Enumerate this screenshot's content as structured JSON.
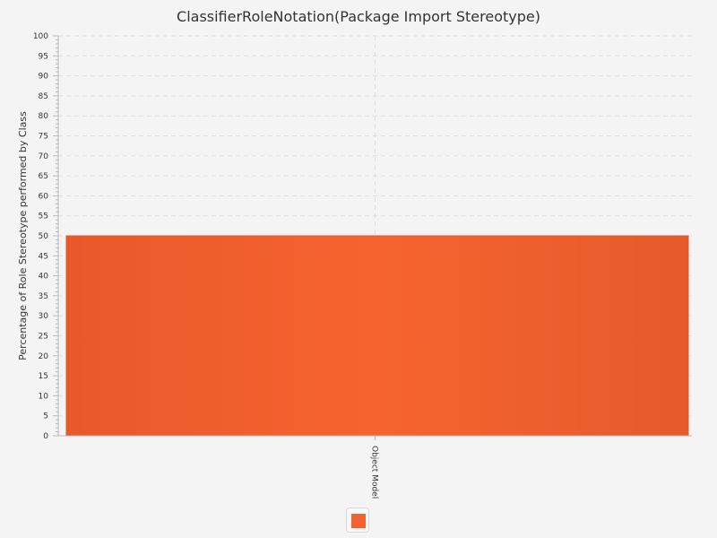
{
  "chart_data": {
    "type": "bar",
    "title": "ClassifierRoleNotation(Package Import Stereotype)",
    "xlabel": "",
    "ylabel": "Percentage of Role Stereotype performed by Class",
    "categories": [
      "Object Model"
    ],
    "series": [
      {
        "values": [
          50
        ]
      }
    ],
    "ylim": [
      0,
      100
    ],
    "ytick_step": 5,
    "yminor_step": 1,
    "grid": true,
    "legend_placement": "bottom-center",
    "colors": {
      "bar": "#f26130",
      "bar_edge": "#e05a28",
      "grid": "#dedede",
      "axis": "#b8b8b8",
      "background": "#f4f4f4"
    }
  }
}
